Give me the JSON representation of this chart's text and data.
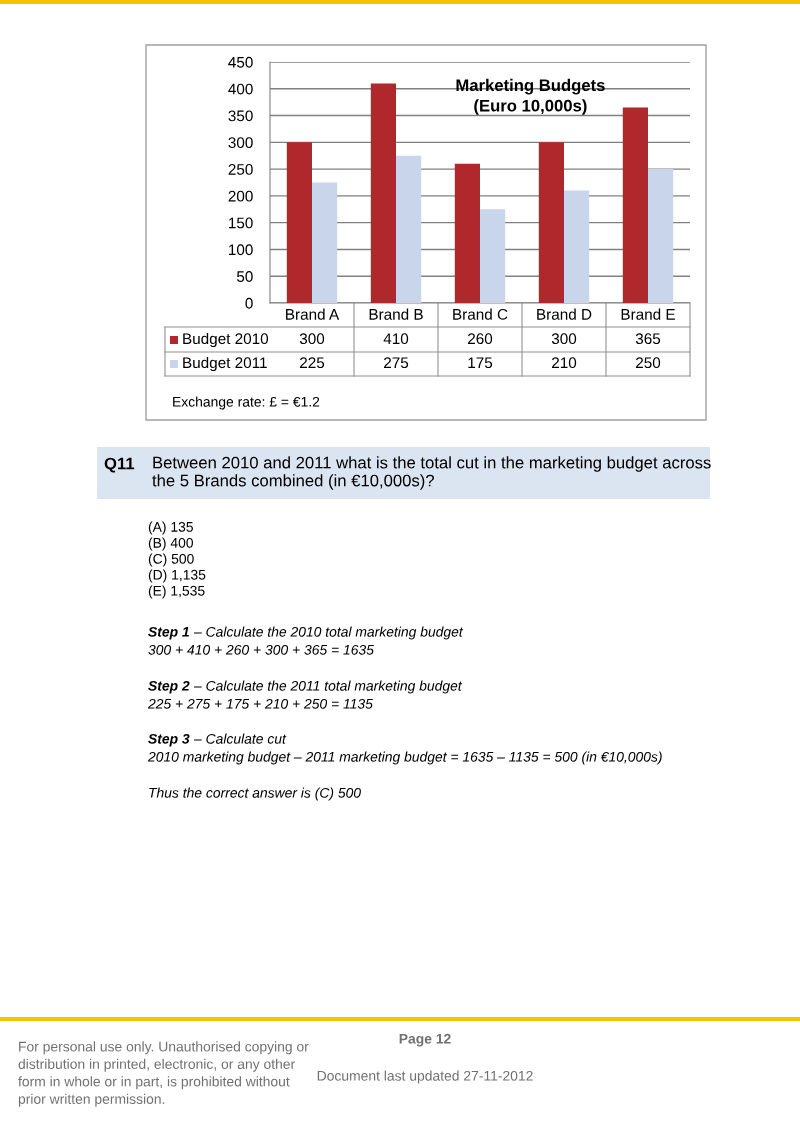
{
  "chart_data": {
    "type": "bar",
    "title": "Marketing Budgets\n(Euro 10,000s)",
    "categories": [
      "Brand A",
      "Brand B",
      "Brand C",
      "Brand D",
      "Brand E"
    ],
    "series": [
      {
        "name": "Budget 2010",
        "color": "#b0282b",
        "values": [
          300,
          410,
          260,
          300,
          365
        ]
      },
      {
        "name": "Budget 2011",
        "color": "#c9d5ea",
        "values": [
          225,
          275,
          175,
          210,
          250
        ]
      }
    ],
    "ylim": [
      0,
      450
    ],
    "yticks": [
      0,
      50,
      100,
      150,
      200,
      250,
      300,
      350,
      400,
      450
    ],
    "grid": "y",
    "legend": "bottom",
    "data_labels": true,
    "annotations": [
      "Exchange rate: £ = €1.2",
      "Q11",
      "Between 2010 and 2011 what is the total cut in the marketing budget across\nthe 5 Brands combined (in €10,000s)?",
      "(A) 135\n(B) 400\n(C) 500\n(D) 1,135\n(E) 1,535",
      "Step 1",
      "– Calculate the 2010 total marketing budget",
      "300 + 410 + 260 + 300 + 365 = 1635",
      "Step 2",
      "– Calculate the 2011 total marketing budget",
      "225 + 275 + 175 + 210 + 250 = 1135",
      "Step 3",
      "– Calculate cut",
      "2010 marketing budget – 2011 marketing budget = 1635 – 1135 = 500 (in €10,000s)",
      "Thus the correct answer is (C) 500",
      "For personal use only. Unauthorised copying or\ndistribution in printed, electronic, or any other\nform in whole or in part, is prohibited without\nprior written permission.",
      "Page 12",
      "Document last updated 27-11-2012"
    ]
  }
}
